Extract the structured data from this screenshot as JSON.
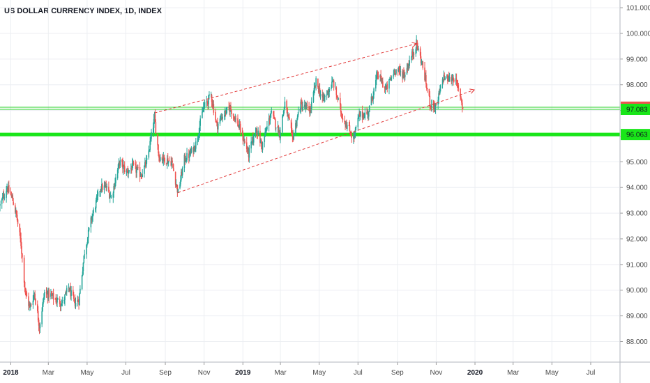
{
  "chart_data": {
    "type": "candlestick",
    "title": "US DOLLAR CURRENCY INDEX, 1D, INDEX",
    "y_ticks": [
      "101.000",
      "100.000",
      "99.000",
      "98.000",
      "97.000",
      "96.000",
      "95.000",
      "94.000",
      "93.000",
      "92.000",
      "91.000",
      "90.000",
      "89.000",
      "88.000"
    ],
    "y_tick_values": [
      101,
      100,
      99,
      98,
      97,
      96,
      95,
      94,
      93,
      92,
      91,
      90,
      89,
      88
    ],
    "ylim": [
      87.2,
      101.3
    ],
    "x_ticks": [
      {
        "label": "2018",
        "date": "2018-01-01",
        "bold": true
      },
      {
        "label": "Mar",
        "date": "2018-03-01",
        "bold": false
      },
      {
        "label": "May",
        "date": "2018-05-01",
        "bold": false
      },
      {
        "label": "Jul",
        "date": "2018-07-01",
        "bold": false
      },
      {
        "label": "Sep",
        "date": "2018-09-01",
        "bold": false
      },
      {
        "label": "Nov",
        "date": "2018-11-01",
        "bold": false
      },
      {
        "label": "2019",
        "date": "2019-01-01",
        "bold": true
      },
      {
        "label": "Mar",
        "date": "2019-03-01",
        "bold": false
      },
      {
        "label": "May",
        "date": "2019-05-01",
        "bold": false
      },
      {
        "label": "Jul",
        "date": "2019-07-01",
        "bold": false
      },
      {
        "label": "Sep",
        "date": "2019-09-01",
        "bold": false
      },
      {
        "label": "Nov",
        "date": "2019-11-01",
        "bold": false
      },
      {
        "label": "2020",
        "date": "2020-01-01",
        "bold": true
      },
      {
        "label": "Mar",
        "date": "2020-03-01",
        "bold": false
      },
      {
        "label": "May",
        "date": "2020-05-01",
        "bold": false
      },
      {
        "label": "Jul",
        "date": "2020-07-01",
        "bold": false
      }
    ],
    "xlim": [
      "2017-12-15",
      "2020-08-15"
    ],
    "price_path": [
      [
        "2017-12-15",
        93.3
      ],
      [
        "2017-12-26",
        94.0
      ],
      [
        "2018-01-03",
        93.6
      ],
      [
        "2018-01-10",
        92.9
      ],
      [
        "2018-01-17",
        91.8
      ],
      [
        "2018-01-24",
        89.9
      ],
      [
        "2018-01-31",
        89.3
      ],
      [
        "2018-02-07",
        89.9
      ],
      [
        "2018-02-15",
        88.6
      ],
      [
        "2018-02-23",
        89.9
      ],
      [
        "2018-03-05",
        89.8
      ],
      [
        "2018-03-14",
        89.6
      ],
      [
        "2018-03-23",
        89.5
      ],
      [
        "2018-04-02",
        90.1
      ],
      [
        "2018-04-11",
        89.5
      ],
      [
        "2018-04-18",
        89.6
      ],
      [
        "2018-04-27",
        91.5
      ],
      [
        "2018-05-08",
        92.8
      ],
      [
        "2018-05-22",
        94.0
      ],
      [
        "2018-05-31",
        94.0
      ],
      [
        "2018-06-08",
        93.6
      ],
      [
        "2018-06-21",
        95.0
      ],
      [
        "2018-07-02",
        94.6
      ],
      [
        "2018-07-12",
        94.8
      ],
      [
        "2018-07-25",
        94.5
      ],
      [
        "2018-08-03",
        95.0
      ],
      [
        "2018-08-15",
        96.7
      ],
      [
        "2018-08-22",
        95.2
      ],
      [
        "2018-08-31",
        95.1
      ],
      [
        "2018-09-11",
        95.0
      ],
      [
        "2018-09-21",
        93.8
      ],
      [
        "2018-10-01",
        95.1
      ],
      [
        "2018-10-10",
        95.3
      ],
      [
        "2018-10-19",
        95.7
      ],
      [
        "2018-10-31",
        97.1
      ],
      [
        "2018-11-12",
        97.6
      ],
      [
        "2018-11-21",
        96.4
      ],
      [
        "2018-11-30",
        96.8
      ],
      [
        "2018-12-12",
        97.1
      ],
      [
        "2018-12-27",
        96.3
      ],
      [
        "2019-01-10",
        95.3
      ],
      [
        "2019-01-22",
        96.3
      ],
      [
        "2019-01-31",
        95.6
      ],
      [
        "2019-02-14",
        96.9
      ],
      [
        "2019-02-28",
        96.1
      ],
      [
        "2019-03-08",
        97.3
      ],
      [
        "2019-03-20",
        95.9
      ],
      [
        "2019-04-01",
        97.2
      ],
      [
        "2019-04-17",
        97.0
      ],
      [
        "2019-04-26",
        98.1
      ],
      [
        "2019-05-07",
        97.4
      ],
      [
        "2019-05-23",
        98.1
      ],
      [
        "2019-06-06",
        96.8
      ],
      [
        "2019-06-24",
        95.9
      ],
      [
        "2019-07-03",
        96.8
      ],
      [
        "2019-07-17",
        96.9
      ],
      [
        "2019-08-01",
        98.4
      ],
      [
        "2019-08-14",
        97.8
      ],
      [
        "2019-08-28",
        98.6
      ],
      [
        "2019-09-12",
        98.4
      ],
      [
        "2019-10-01",
        99.6
      ],
      [
        "2019-10-10",
        98.8
      ],
      [
        "2019-10-22",
        97.3
      ],
      [
        "2019-11-01",
        97.1
      ],
      [
        "2019-11-12",
        98.3
      ],
      [
        "2019-11-22",
        98.2
      ],
      [
        "2019-11-29",
        98.3
      ],
      [
        "2019-12-09",
        97.6
      ],
      [
        "2019-12-13",
        97.1
      ]
    ],
    "last_price": "97.128",
    "horizontal_levels": [
      {
        "value": 97.083,
        "label": "97.083",
        "color": "#2ad12a",
        "style": "thin-double"
      },
      {
        "value": 96.063,
        "label": "96.063",
        "color": "#19e619",
        "style": "thick"
      }
    ],
    "trend_lines": [
      {
        "from": [
          "2018-08-15",
          96.9
        ],
        "to": [
          "2019-10-01",
          99.6
        ],
        "color": "#e23a3a",
        "style": "dashed"
      },
      {
        "from": [
          "2018-09-21",
          93.8
        ],
        "to": [
          "2019-12-31",
          97.8
        ],
        "color": "#e23a3a",
        "style": "dashed"
      }
    ],
    "colors": {
      "up": "#26a69a",
      "down": "#ef5350",
      "grid": "#eceef2",
      "last_price_badge": "#ef5350",
      "level_badge": "#19e619"
    }
  }
}
